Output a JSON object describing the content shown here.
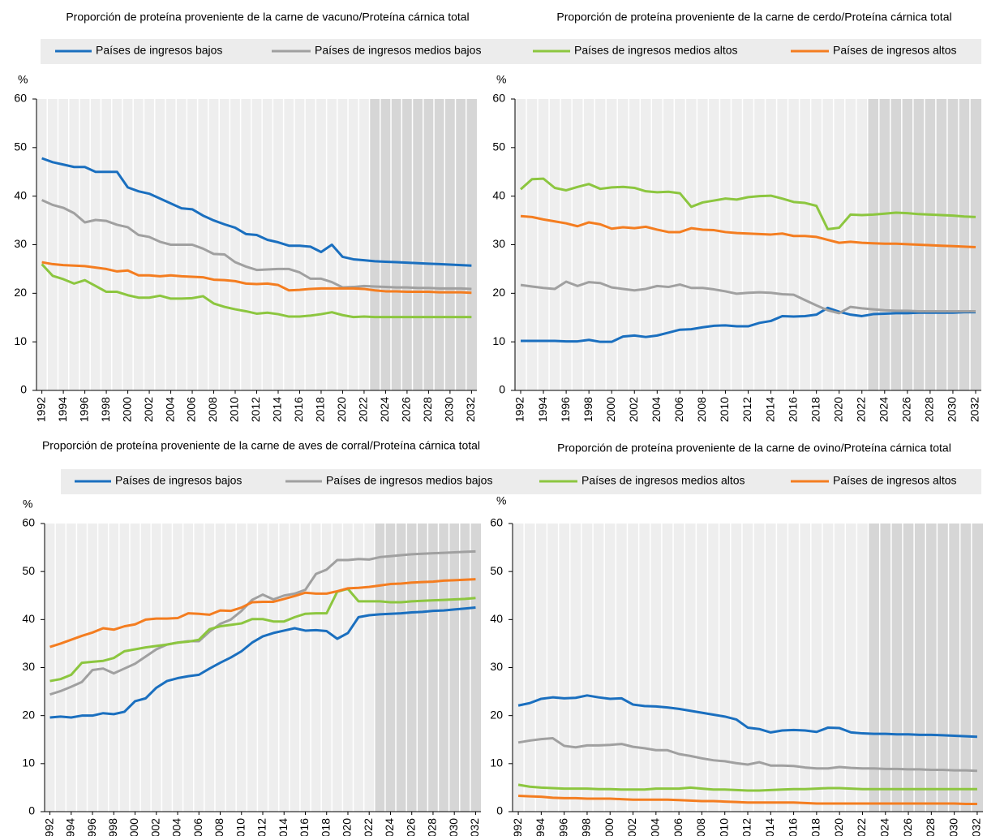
{
  "chart_data": [
    {
      "type": "line",
      "title": "Proporción de proteína proveniente de la carne de vacuno/Proteína cárnica total",
      "y_label": "%",
      "x": [
        1992,
        1993,
        1994,
        1995,
        1996,
        1997,
        1998,
        1999,
        2000,
        2001,
        2002,
        2003,
        2004,
        2005,
        2006,
        2007,
        2008,
        2009,
        2010,
        2011,
        2012,
        2013,
        2014,
        2015,
        2016,
        2017,
        2018,
        2019,
        2020,
        2021,
        2022,
        2023,
        2024,
        2025,
        2026,
        2027,
        2028,
        2029,
        2030,
        2031,
        2032
      ],
      "xlim": [
        1991.5,
        2032.5
      ],
      "xticks": [
        1992,
        1994,
        1996,
        1998,
        2000,
        2002,
        2004,
        2006,
        2008,
        2010,
        2012,
        2014,
        2016,
        2018,
        2020,
        2022,
        2024,
        2026,
        2028,
        2030,
        2032
      ],
      "ylim": [
        0,
        60
      ],
      "yticks": [
        0,
        10,
        20,
        30,
        40,
        50,
        60
      ],
      "projection_start": 2023,
      "series": [
        {
          "name": "Países de ingresos bajos",
          "color": "#1a6fbf",
          "values": [
            47.8,
            47,
            46.5,
            46,
            46,
            45,
            45,
            45,
            41.8,
            41,
            40.5,
            39.5,
            38.5,
            37.5,
            37.3,
            36,
            35,
            34.2,
            33.5,
            32.2,
            32,
            31,
            30.5,
            29.8,
            29.8,
            29.6,
            28.5,
            30,
            27.5,
            27,
            26.8,
            26.6,
            26.5,
            26.4,
            26.3,
            26.2,
            26.1,
            26,
            25.9,
            25.8,
            25.7
          ]
        },
        {
          "name": "Países de ingresos medios bajos",
          "color": "#a0a0a0",
          "values": [
            39.2,
            38.2,
            37.6,
            36.5,
            34.6,
            35.1,
            34.9,
            34.1,
            33.6,
            32,
            31.6,
            30.6,
            30,
            30,
            30,
            29.2,
            28.1,
            28,
            26.4,
            25.5,
            24.8,
            24.9,
            25,
            25,
            24.3,
            23,
            23,
            22.3,
            21.2,
            21.3,
            21.5,
            21.4,
            21.3,
            21.2,
            21.2,
            21.1,
            21.1,
            21,
            21,
            21,
            20.9
          ]
        },
        {
          "name": "Países de ingresos medios altos",
          "color": "#8cc63f",
          "values": [
            26,
            23.6,
            22.9,
            22,
            22.7,
            21.5,
            20.3,
            20.3,
            19.6,
            19.1,
            19.1,
            19.5,
            18.9,
            18.9,
            19,
            19.4,
            17.9,
            17.2,
            16.7,
            16.3,
            15.8,
            16,
            15.7,
            15.2,
            15.2,
            15.4,
            15.7,
            16.1,
            15.5,
            15.1,
            15.2,
            15.1,
            15.1,
            15.1,
            15.1,
            15.1,
            15.1,
            15.1,
            15.1,
            15.1,
            15.1
          ]
        },
        {
          "name": "Países de ingresos altos",
          "color": "#f47d20",
          "values": [
            26.4,
            26,
            25.8,
            25.7,
            25.6,
            25.3,
            25,
            24.5,
            24.7,
            23.7,
            23.7,
            23.5,
            23.7,
            23.5,
            23.4,
            23.3,
            22.8,
            22.7,
            22.5,
            22,
            21.9,
            22,
            21.7,
            20.6,
            20.7,
            20.9,
            21,
            21,
            21,
            21,
            20.9,
            20.6,
            20.4,
            20.4,
            20.3,
            20.3,
            20.3,
            20.2,
            20.2,
            20.2,
            20.1
          ]
        }
      ]
    },
    {
      "type": "line",
      "title": "Proporción de proteína proveniente de la carne de cerdo/Proteína cárnica total",
      "y_label": "%",
      "x": [
        1992,
        1993,
        1994,
        1995,
        1996,
        1997,
        1998,
        1999,
        2000,
        2001,
        2002,
        2003,
        2004,
        2005,
        2006,
        2007,
        2008,
        2009,
        2010,
        2011,
        2012,
        2013,
        2014,
        2015,
        2016,
        2017,
        2018,
        2019,
        2020,
        2021,
        2022,
        2023,
        2024,
        2025,
        2026,
        2027,
        2028,
        2029,
        2030,
        2031,
        2032
      ],
      "xlim": [
        1991.5,
        2032.5
      ],
      "xticks": [
        1992,
        1994,
        1996,
        1998,
        2000,
        2002,
        2004,
        2006,
        2008,
        2010,
        2012,
        2014,
        2016,
        2018,
        2020,
        2022,
        2024,
        2026,
        2028,
        2030,
        2032
      ],
      "ylim": [
        0,
        60
      ],
      "yticks": [
        0,
        10,
        20,
        30,
        40,
        50,
        60
      ],
      "projection_start": 2023,
      "series": [
        {
          "name": "Países de ingresos bajos",
          "color": "#1a6fbf",
          "values": [
            10.2,
            10.2,
            10.2,
            10.2,
            10.1,
            10.1,
            10.4,
            10,
            10,
            11.1,
            11.3,
            11,
            11.3,
            11.9,
            12.5,
            12.6,
            13,
            13.3,
            13.4,
            13.2,
            13.2,
            13.9,
            14.3,
            15.3,
            15.2,
            15.3,
            15.6,
            17,
            16.2,
            15.6,
            15.3,
            15.7,
            15.8,
            15.9,
            15.9,
            16,
            16,
            16,
            16,
            16.1,
            16.1
          ]
        },
        {
          "name": "Países de ingresos medios bajos",
          "color": "#a0a0a0",
          "values": [
            21.7,
            21.4,
            21.1,
            20.9,
            22.4,
            21.5,
            22.3,
            22.1,
            21.2,
            20.9,
            20.6,
            20.9,
            21.5,
            21.3,
            21.8,
            21.1,
            21.1,
            20.8,
            20.4,
            19.9,
            20.1,
            20.2,
            20.1,
            19.8,
            19.7,
            18.6,
            17.5,
            16.5,
            15.9,
            17.2,
            16.9,
            16.7,
            16.5,
            16.4,
            16.4,
            16.3,
            16.3,
            16.3,
            16.3,
            16.3,
            16.3
          ]
        },
        {
          "name": "Países de ingresos medios altos",
          "color": "#8cc63f",
          "values": [
            41.4,
            43.5,
            43.6,
            41.7,
            41.2,
            41.9,
            42.5,
            41.5,
            41.8,
            41.9,
            41.7,
            41,
            40.8,
            40.9,
            40.6,
            37.8,
            38.7,
            39.1,
            39.5,
            39.3,
            39.8,
            40,
            40.1,
            39.5,
            38.8,
            38.6,
            38,
            33.2,
            33.5,
            36.2,
            36.1,
            36.2,
            36.4,
            36.6,
            36.5,
            36.3,
            36.2,
            36.1,
            36,
            35.8,
            35.7
          ]
        },
        {
          "name": "Países de ingresos altos",
          "color": "#f47d20",
          "values": [
            35.9,
            35.7,
            35.2,
            34.8,
            34.4,
            33.8,
            34.6,
            34.2,
            33.3,
            33.6,
            33.4,
            33.7,
            33.1,
            32.6,
            32.6,
            33.4,
            33.1,
            33,
            32.6,
            32.4,
            32.3,
            32.2,
            32.1,
            32.3,
            31.8,
            31.8,
            31.6,
            31,
            30.4,
            30.6,
            30.4,
            30.3,
            30.2,
            30.2,
            30.1,
            30,
            29.9,
            29.8,
            29.7,
            29.6,
            29.5
          ]
        }
      ]
    },
    {
      "type": "line",
      "title": "Proporción de proteína proveniente de la carne de aves de corral/Proteína cárnica total",
      "y_label": "%",
      "x": [
        1992,
        1993,
        1994,
        1995,
        1996,
        1997,
        1998,
        1999,
        2000,
        2001,
        2002,
        2003,
        2004,
        2005,
        2006,
        2007,
        2008,
        2009,
        2010,
        2011,
        2012,
        2013,
        2014,
        2015,
        2016,
        2017,
        2018,
        2019,
        2020,
        2021,
        2022,
        2023,
        2024,
        2025,
        2026,
        2027,
        2028,
        2029,
        2030,
        2031,
        2032
      ],
      "xlim": [
        1991.5,
        2032.5
      ],
      "xticks": [
        1992,
        1994,
        1996,
        1998,
        2000,
        2002,
        2004,
        2006,
        2008,
        2010,
        2012,
        2014,
        2016,
        2018,
        2020,
        2022,
        2024,
        2026,
        2028,
        2030,
        2032
      ],
      "ylim": [
        0,
        60
      ],
      "yticks": [
        0,
        10,
        20,
        30,
        40,
        50,
        60
      ],
      "projection_start": 2023,
      "series": [
        {
          "name": "Países de ingresos bajos",
          "color": "#1a6fbf",
          "values": [
            19.6,
            19.8,
            19.6,
            20,
            20,
            20.5,
            20.3,
            20.8,
            23,
            23.6,
            25.8,
            27.2,
            27.8,
            28.2,
            28.5,
            29.8,
            31,
            32.1,
            33.4,
            35.2,
            36.5,
            37.2,
            37.7,
            38.2,
            37.7,
            37.8,
            37.6,
            36,
            37.2,
            40.5,
            40.9,
            41.1,
            41.2,
            41.3,
            41.5,
            41.6,
            41.8,
            41.9,
            42.1,
            42.3,
            42.5
          ]
        },
        {
          "name": "Países de ingresos medios bajos",
          "color": "#a0a0a0",
          "values": [
            24.4,
            25.1,
            26,
            27,
            29.5,
            29.8,
            28.8,
            29.8,
            30.8,
            32.3,
            33.8,
            34.8,
            35.2,
            35.5,
            35.5,
            37.5,
            39.1,
            40,
            41.8,
            44.1,
            45.2,
            44.2,
            45,
            45.4,
            46.2,
            49.5,
            50.4,
            52.4,
            52.4,
            52.6,
            52.5,
            53,
            53.2,
            53.4,
            53.6,
            53.7,
            53.8,
            53.9,
            54,
            54.1,
            54.2
          ]
        },
        {
          "name": "Países de ingresos medios altos",
          "color": "#8cc63f",
          "values": [
            27.2,
            27.6,
            28.5,
            31,
            31.2,
            31.4,
            32,
            33.4,
            33.8,
            34.2,
            34.5,
            34.8,
            35.2,
            35.4,
            35.8,
            38,
            38.6,
            38.9,
            39.2,
            40.1,
            40.1,
            39.6,
            39.6,
            40.5,
            41.2,
            41.3,
            41.3,
            45.8,
            46.4,
            43.8,
            43.8,
            43.8,
            43.6,
            43.6,
            43.8,
            43.9,
            44,
            44.1,
            44.2,
            44.3,
            44.5
          ]
        },
        {
          "name": "Países de ingresos altos",
          "color": "#f47d20",
          "values": [
            34.3,
            35,
            35.8,
            36.6,
            37.3,
            38.2,
            37.9,
            38.6,
            39,
            40,
            40.2,
            40.2,
            40.3,
            41.3,
            41.2,
            41,
            41.9,
            41.8,
            42.5,
            43.6,
            43.7,
            43.7,
            44.3,
            44.9,
            45.6,
            45.4,
            45.4,
            45.9,
            46.5,
            46.6,
            46.8,
            47.1,
            47.4,
            47.5,
            47.7,
            47.8,
            47.9,
            48.1,
            48.2,
            48.3,
            48.4
          ]
        }
      ]
    },
    {
      "type": "line",
      "title": "Proporción de proteína proveniente de la carne de ovino/Proteína cárnica total",
      "y_label": "%",
      "x": [
        1992,
        1993,
        1994,
        1995,
        1996,
        1997,
        1998,
        1999,
        2000,
        2001,
        2002,
        2003,
        2004,
        2005,
        2006,
        2007,
        2008,
        2009,
        2010,
        2011,
        2012,
        2013,
        2014,
        2015,
        2016,
        2017,
        2018,
        2019,
        2020,
        2021,
        2022,
        2023,
        2024,
        2025,
        2026,
        2027,
        2028,
        2029,
        2030,
        2031,
        2032
      ],
      "xlim": [
        1991.5,
        2032.5
      ],
      "xticks": [
        1992,
        1994,
        1996,
        1998,
        2000,
        2002,
        2004,
        2006,
        2008,
        2010,
        2012,
        2014,
        2016,
        2018,
        2020,
        2022,
        2024,
        2026,
        2028,
        2030,
        2032
      ],
      "ylim": [
        0,
        60
      ],
      "yticks": [
        0,
        10,
        20,
        30,
        40,
        50,
        60
      ],
      "projection_start": 2023,
      "series": [
        {
          "name": "Países de ingresos bajos",
          "color": "#1a6fbf",
          "values": [
            22.1,
            22.6,
            23.5,
            23.8,
            23.6,
            23.7,
            24.2,
            23.8,
            23.5,
            23.6,
            22.3,
            22,
            21.9,
            21.7,
            21.4,
            21,
            20.6,
            20.2,
            19.8,
            19.2,
            17.5,
            17.2,
            16.5,
            16.9,
            17,
            16.9,
            16.6,
            17.5,
            17.4,
            16.5,
            16.3,
            16.2,
            16.2,
            16.1,
            16.1,
            16,
            16,
            15.9,
            15.8,
            15.7,
            15.6
          ]
        },
        {
          "name": "Países de ingresos medios bajos",
          "color": "#a0a0a0",
          "values": [
            14.4,
            14.8,
            15.1,
            15.3,
            13.7,
            13.4,
            13.8,
            13.8,
            13.9,
            14.1,
            13.5,
            13.2,
            12.8,
            12.8,
            12,
            11.6,
            11.1,
            10.7,
            10.5,
            10.1,
            9.8,
            10.3,
            9.6,
            9.6,
            9.5,
            9.2,
            9,
            9,
            9.3,
            9.1,
            9,
            9,
            8.9,
            8.9,
            8.8,
            8.8,
            8.7,
            8.7,
            8.6,
            8.6,
            8.5
          ]
        },
        {
          "name": "Países de ingresos medios altos",
          "color": "#8cc63f",
          "values": [
            5.6,
            5.2,
            5,
            4.9,
            4.8,
            4.8,
            4.8,
            4.7,
            4.7,
            4.6,
            4.6,
            4.6,
            4.8,
            4.8,
            4.8,
            5,
            4.8,
            4.6,
            4.6,
            4.5,
            4.4,
            4.4,
            4.5,
            4.6,
            4.7,
            4.7,
            4.8,
            4.9,
            4.9,
            4.8,
            4.7,
            4.7,
            4.7,
            4.7,
            4.7,
            4.7,
            4.7,
            4.7,
            4.7,
            4.7,
            4.7
          ]
        },
        {
          "name": "Países de ingresos altos",
          "color": "#f47d20",
          "values": [
            3.3,
            3.2,
            3.1,
            2.9,
            2.8,
            2.8,
            2.7,
            2.7,
            2.7,
            2.6,
            2.5,
            2.5,
            2.5,
            2.5,
            2.4,
            2.3,
            2.2,
            2.2,
            2.1,
            2,
            1.9,
            1.9,
            1.9,
            1.9,
            1.9,
            1.8,
            1.7,
            1.7,
            1.7,
            1.7,
            1.7,
            1.7,
            1.7,
            1.7,
            1.7,
            1.7,
            1.7,
            1.7,
            1.7,
            1.6,
            1.6
          ]
        }
      ]
    }
  ]
}
